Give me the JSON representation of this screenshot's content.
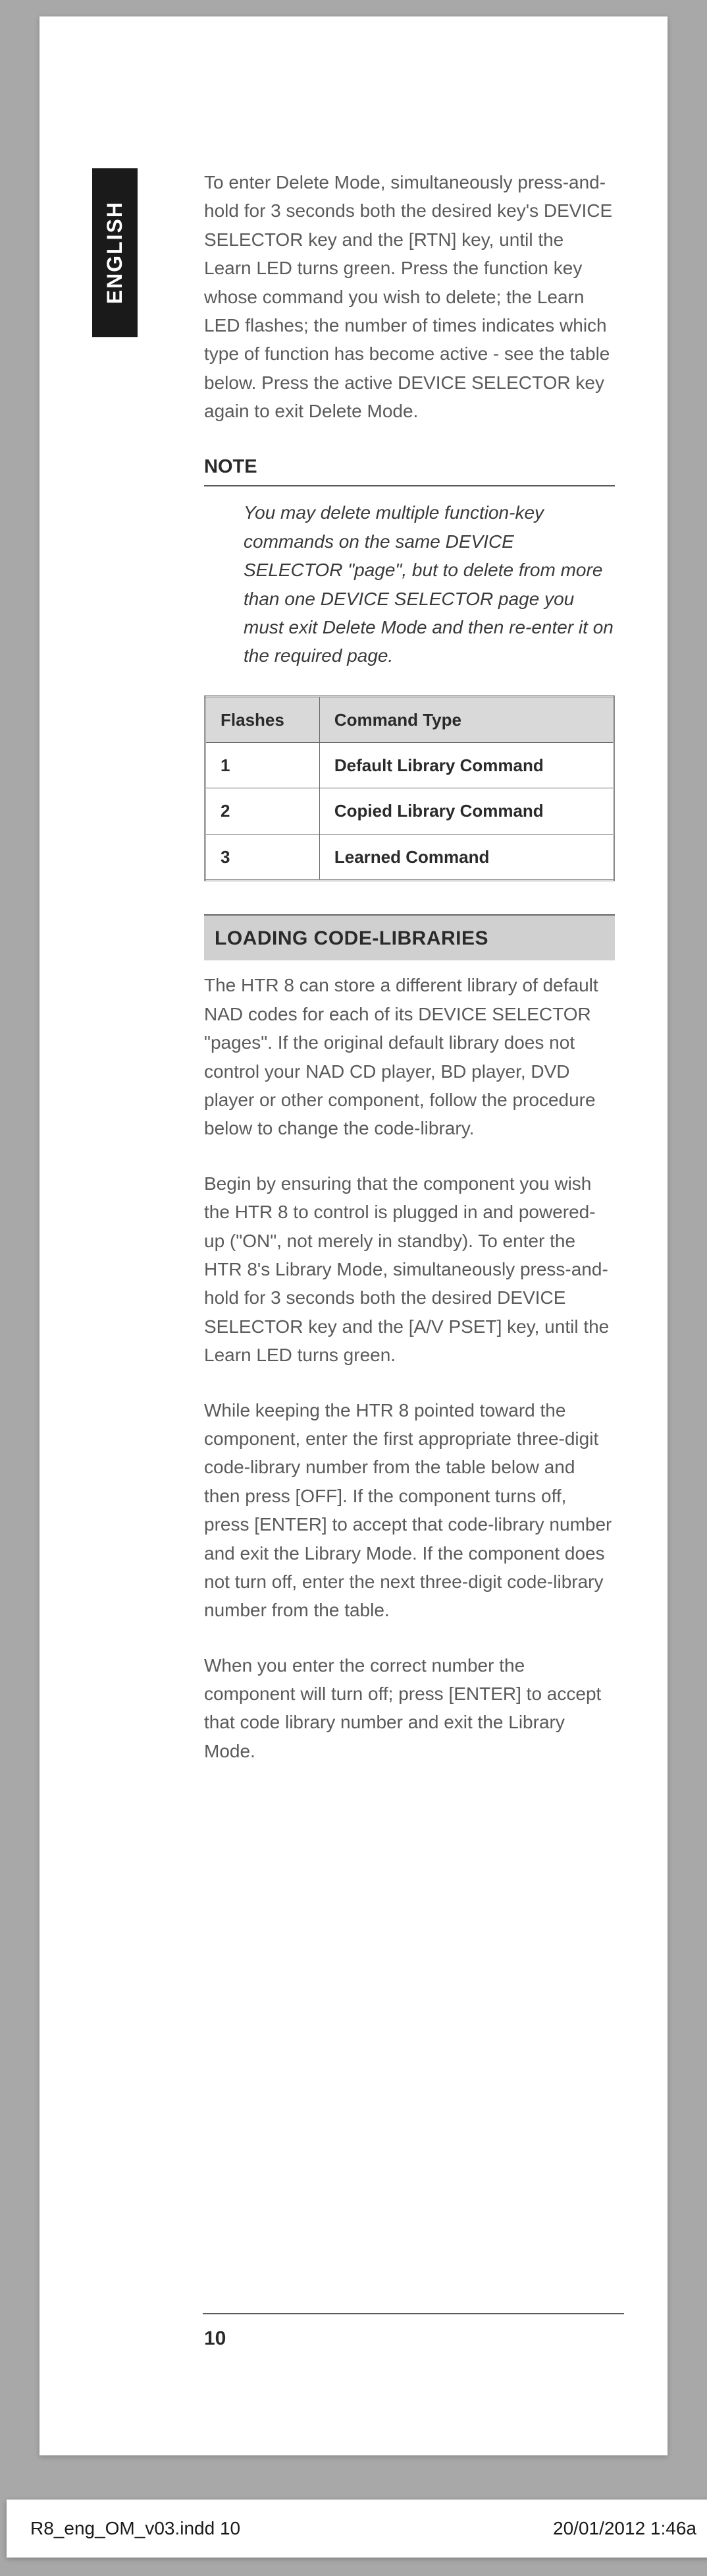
{
  "langTab": "ENGLISH",
  "intro": "To enter Delete Mode, simultaneously press-and-hold for 3 seconds both the desired key's DEVICE SELECTOR key and the [RTN] key, until the Learn LED turns green. Press the function key whose command you wish to delete; the Learn LED flashes; the number of times indicates which type of function has become active - see the table below. Press the active DEVICE SELECTOR key again to exit Delete Mode.",
  "note": {
    "heading": "NOTE",
    "body": "You may delete multiple function-key commands on the same DEVICE SELECTOR \"page\", but to delete from more than one DEVICE SELECTOR page you must exit Delete Mode and then re-enter it on the required page."
  },
  "table": {
    "headers": [
      "Flashes",
      "Command Type"
    ],
    "rows": [
      [
        "1",
        "Default Library Command"
      ],
      [
        "2",
        "Copied Library Command"
      ],
      [
        "3",
        "Learned Command"
      ]
    ]
  },
  "section": {
    "heading": "LOADING CODE-LIBRARIES",
    "p1": "The HTR 8 can store a different library of default NAD codes for each of its DEVICE SELECTOR \"pages\". If the original default library does not control your NAD CD player, BD player, DVD player or other component, follow the procedure below to change the code-library.",
    "p2": "Begin by ensuring that the component you wish the HTR 8 to control is plugged in and powered-up (\"ON\", not merely in standby). To enter the HTR 8's Library Mode, simultaneously press-and-hold for 3 seconds both the desired DEVICE SELECTOR key and the [A/V PSET] key, until the Learn LED turns green.",
    "p3": "While keeping the HTR 8 pointed toward the component, enter the first appropriate three-digit code-library number from the table below and then press [OFF]. If the component turns off, press [ENTER] to accept that code-library number and exit the Library Mode. If the component does not turn off, enter the next three-digit code-library number from the table.",
    "p4": "When you enter the correct number the component will turn off; press [ENTER] to accept that code library number and exit the Library Mode."
  },
  "pageNumber": "10",
  "footer": {
    "left": "R8_eng_OM_v03.indd   10",
    "right": "20/01/2012   1:46a"
  },
  "colors": {
    "pageBg": "#ffffff",
    "bodyBg": "#a8a8a8",
    "langTabBg": "#1a1a1a",
    "textGray": "#5a5a5a",
    "thBg": "#d9d9d9",
    "sectionBg": "#d0d0d0"
  }
}
